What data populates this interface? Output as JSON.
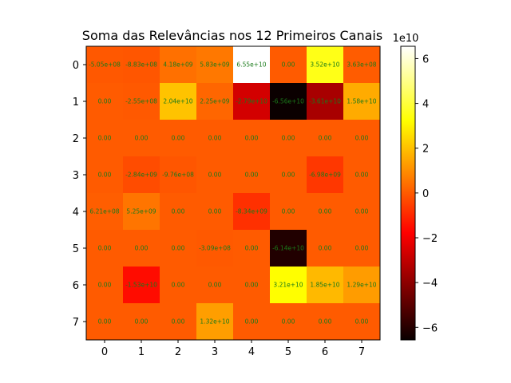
{
  "chart_data": {
    "type": "heatmap",
    "title": "Soma das Relevâncias nos 12 Primeiros Canais",
    "colormap": "hot",
    "x_ticks": [
      "0",
      "1",
      "2",
      "3",
      "4",
      "5",
      "6",
      "7"
    ],
    "y_ticks": [
      "0",
      "1",
      "2",
      "3",
      "4",
      "5",
      "6",
      "7"
    ],
    "vmin": -65600000000.0,
    "vmax": 65500000000.0,
    "colorbar": {
      "ticks": [
        "−6",
        "−4",
        "−2",
        "0",
        "2",
        "4",
        "6"
      ],
      "tick_values": [
        -60000000000.0,
        -40000000000.0,
        -20000000000.0,
        0,
        20000000000.0,
        40000000000.0,
        60000000000.0
      ],
      "exponent_label": "1e10"
    },
    "values": [
      [
        -505000000.0,
        -883000000.0,
        4180000000.0,
        5830000000.0,
        65500000000.0,
        0,
        35200000000.0,
        363000000.0
      ],
      [
        0,
        -255000000.0,
        20400000000.0,
        2250000000.0,
        -27900000000.0,
        -65600000000.0,
        -36100000000.0,
        15800000000.0
      ],
      [
        0,
        0,
        0,
        0,
        0,
        0,
        0,
        0
      ],
      [
        0,
        -2840000000.0,
        -976000000.0,
        0,
        0,
        0,
        -6980000000.0,
        0
      ],
      [
        621000000.0,
        5250000000.0,
        0,
        0,
        -8340000000.0,
        0,
        0,
        0
      ],
      [
        0,
        0,
        0,
        -309000000.0,
        0,
        -61400000000.0,
        0,
        0
      ],
      [
        0,
        -15300000000.0,
        0,
        0,
        0,
        32100000000.0,
        18500000000.0,
        12900000000.0
      ],
      [
        0,
        0,
        0,
        13200000000.0,
        0,
        0,
        0,
        0
      ]
    ],
    "labels": [
      [
        "-5.05e+08",
        "-8.83e+08",
        "4.18e+09",
        "5.83e+09",
        "6.55e+10",
        "0.00",
        "3.52e+10",
        "3.63e+08"
      ],
      [
        "0.00",
        "-2.55e+08",
        "2.04e+10",
        "2.25e+09",
        "-2.79e+10",
        "-6.56e+10",
        "-3.61e+10",
        "1.58e+10"
      ],
      [
        "0.00",
        "0.00",
        "0.00",
        "0.00",
        "0.00",
        "0.00",
        "0.00",
        "0.00"
      ],
      [
        "0.00",
        "-2.84e+09",
        "-9.76e+08",
        "0.00",
        "0.00",
        "0.00",
        "-6.98e+09",
        "0.00"
      ],
      [
        "6.21e+08",
        "5.25e+09",
        "0.00",
        "0.00",
        "-8.34e+09",
        "0.00",
        "0.00",
        "0.00"
      ],
      [
        "0.00",
        "0.00",
        "0.00",
        "-3.09e+08",
        "0.00",
        "-6.14e+10",
        "0.00",
        "0.00"
      ],
      [
        "0.00",
        "-1.53e+10",
        "0.00",
        "0.00",
        "0.00",
        "3.21e+10",
        "1.85e+10",
        "1.29e+10"
      ],
      [
        "0.00",
        "0.00",
        "0.00",
        "1.32e+10",
        "0.00",
        "0.00",
        "0.00",
        "0.00"
      ]
    ]
  }
}
